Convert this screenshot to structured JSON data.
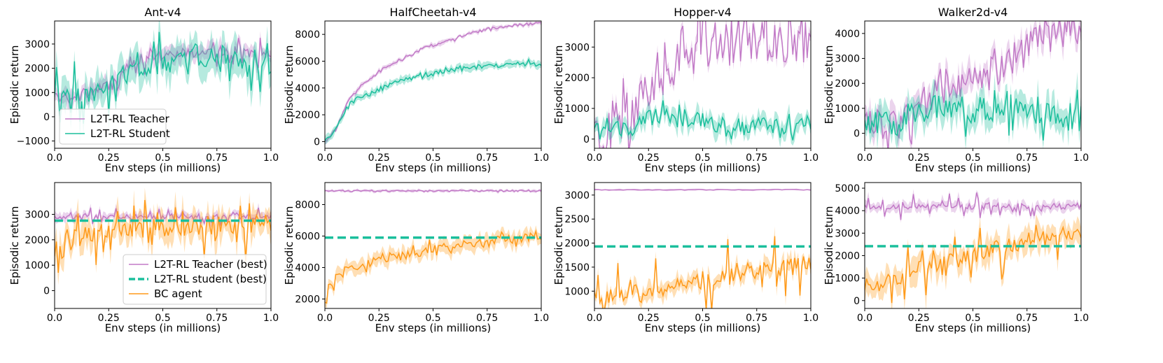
{
  "colors": {
    "teacher": "#c27ac7",
    "student": "#1bbf9c",
    "bc": "#ff9a1a",
    "best_student": "#1bbf9c"
  },
  "chart_data": [
    {
      "type": "line",
      "title": "Ant-v4",
      "row": 0,
      "xlabel": "Env steps (in millions)",
      "ylabel": "Episodic return",
      "xlim": [
        0,
        1
      ],
      "ylim": [
        -1300,
        3950
      ],
      "xticks": [
        0,
        0.25,
        0.5,
        0.75,
        1.0
      ],
      "xtick_labels": [
        "0.0",
        "0.25",
        "0.5",
        "0.75",
        "1.0"
      ],
      "yticks": [
        -1000,
        0,
        1000,
        2000,
        3000
      ],
      "legend": {
        "position": "lower-left",
        "entries": [
          {
            "label": "L2T-RL Teacher",
            "series": "teacher",
            "style": "line"
          },
          {
            "label": "L2T-RL Student",
            "series": "student",
            "style": "line"
          }
        ]
      },
      "series": [
        {
          "key": "teacher",
          "name": "L2T-RL Teacher",
          "color_key": "teacher",
          "x": [
            0,
            0.05,
            0.1,
            0.15,
            0.2,
            0.25,
            0.3,
            0.35,
            0.4,
            0.45,
            0.5,
            0.55,
            0.6,
            0.65,
            0.7,
            0.75,
            0.8,
            0.85,
            0.9,
            0.95,
            1.0
          ],
          "y": [
            900,
            780,
            900,
            1000,
            1150,
            1300,
            1800,
            2200,
            2350,
            2450,
            2500,
            2550,
            2600,
            2650,
            2700,
            2700,
            2750,
            2700,
            2650,
            2600,
            2500
          ],
          "band": 300,
          "wiggle": 200,
          "noise_amp": 500
        },
        {
          "key": "student",
          "name": "L2T-RL Student",
          "color_key": "student",
          "x": [
            0,
            0.05,
            0.1,
            0.15,
            0.2,
            0.25,
            0.3,
            0.35,
            0.4,
            0.45,
            0.5,
            0.55,
            0.6,
            0.65,
            0.7,
            0.75,
            0.8,
            0.85,
            0.9,
            0.95,
            1.0
          ],
          "y": [
            900,
            750,
            850,
            950,
            1050,
            1200,
            1600,
            1900,
            2000,
            2050,
            2150,
            2250,
            2300,
            2400,
            2450,
            2500,
            2450,
            2400,
            2300,
            2200,
            2000
          ],
          "band": 600,
          "wiggle": 400,
          "noise_amp": 1200
        }
      ]
    },
    {
      "type": "line",
      "title": "HalfCheetah-v4",
      "row": 0,
      "xlabel": "Env steps (in millions)",
      "ylabel": "Episodic return",
      "xlim": [
        0,
        1
      ],
      "ylim": [
        -500,
        9000
      ],
      "xticks": [
        0,
        0.25,
        0.5,
        0.75,
        1.0
      ],
      "xtick_labels": [
        "0.0",
        "0.25",
        "0.5",
        "0.75",
        "1.0"
      ],
      "yticks": [
        0,
        2000,
        4000,
        6000,
        8000
      ],
      "series": [
        {
          "key": "teacher",
          "name": "L2T-RL Teacher",
          "color_key": "teacher",
          "x": [
            0,
            0.05,
            0.1,
            0.15,
            0.2,
            0.25,
            0.3,
            0.35,
            0.4,
            0.45,
            0.5,
            0.55,
            0.6,
            0.65,
            0.7,
            0.75,
            0.8,
            0.85,
            0.9,
            0.95,
            1.0
          ],
          "y": [
            0,
            900,
            2800,
            3900,
            4600,
            5200,
            5700,
            6100,
            6500,
            6900,
            7200,
            7500,
            7700,
            7950,
            8150,
            8350,
            8500,
            8600,
            8700,
            8750,
            8850
          ],
          "band": 150,
          "wiggle": 120,
          "noise_amp": 100
        },
        {
          "key": "student",
          "name": "L2T-RL Student",
          "color_key": "student",
          "x": [
            0,
            0.05,
            0.1,
            0.15,
            0.2,
            0.25,
            0.3,
            0.35,
            0.4,
            0.45,
            0.5,
            0.55,
            0.6,
            0.65,
            0.7,
            0.75,
            0.8,
            0.85,
            0.9,
            0.95,
            1.0
          ],
          "y": [
            0,
            900,
            2600,
            3200,
            3500,
            3900,
            4200,
            4500,
            4750,
            4950,
            5100,
            5250,
            5350,
            5450,
            5550,
            5650,
            5700,
            5750,
            5780,
            5800,
            5800
          ],
          "band": 250,
          "wiggle": 180,
          "noise_amp": 200
        }
      ]
    },
    {
      "type": "line",
      "title": "Hopper-v4",
      "row": 0,
      "xlabel": "Env steps (in millions)",
      "ylabel": "Episodic return",
      "xlim": [
        0,
        1
      ],
      "ylim": [
        -300,
        3850
      ],
      "xticks": [
        0,
        0.25,
        0.5,
        0.75,
        1.0
      ],
      "xtick_labels": [
        "0.0",
        "0.25",
        "0.5",
        "0.75",
        "1.0"
      ],
      "yticks": [
        0,
        1000,
        2000,
        3000
      ],
      "series": [
        {
          "key": "teacher",
          "name": "L2T-RL Teacher",
          "color_key": "teacher",
          "x": [
            0,
            0.05,
            0.1,
            0.15,
            0.2,
            0.25,
            0.3,
            0.35,
            0.4,
            0.45,
            0.5,
            0.55,
            0.6,
            0.65,
            0.7,
            0.75,
            0.8,
            0.85,
            0.9,
            0.95,
            1.0
          ],
          "y": [
            250,
            320,
            450,
            650,
            900,
            1500,
            2100,
            2500,
            2800,
            3000,
            3100,
            3250,
            3350,
            3380,
            3390,
            3390,
            3390,
            3390,
            3390,
            3390,
            3390
          ],
          "band": 200,
          "wiggle": 900,
          "noise_amp": 1400
        },
        {
          "key": "student",
          "name": "L2T-RL Student",
          "color_key": "student",
          "x": [
            0,
            0.05,
            0.1,
            0.15,
            0.2,
            0.25,
            0.3,
            0.35,
            0.4,
            0.45,
            0.5,
            0.55,
            0.6,
            0.65,
            0.7,
            0.75,
            0.8,
            0.85,
            0.9,
            0.95,
            1.0
          ],
          "y": [
            250,
            300,
            350,
            350,
            400,
            700,
            800,
            650,
            700,
            650,
            550,
            450,
            450,
            450,
            400,
            400,
            400,
            420,
            450,
            500,
            550
          ],
          "band": 250,
          "wiggle": 300,
          "noise_amp": 450
        }
      ]
    },
    {
      "type": "line",
      "title": "Walker2d-v4",
      "row": 0,
      "xlabel": "Env steps (in millions)",
      "ylabel": "Episodic return",
      "xlim": [
        0,
        1
      ],
      "ylim": [
        -600,
        4500
      ],
      "xticks": [
        0,
        0.25,
        0.5,
        0.75,
        1.0
      ],
      "xtick_labels": [
        "0.0",
        "0.25",
        "0.5",
        "0.75",
        "1.0"
      ],
      "yticks": [
        0,
        1000,
        2000,
        3000,
        4000
      ],
      "series": [
        {
          "key": "teacher",
          "name": "L2T-RL Teacher",
          "color_key": "teacher",
          "x": [
            0,
            0.05,
            0.1,
            0.15,
            0.2,
            0.25,
            0.3,
            0.35,
            0.4,
            0.45,
            0.5,
            0.55,
            0.6,
            0.65,
            0.7,
            0.75,
            0.8,
            0.85,
            0.9,
            0.95,
            1.0
          ],
          "y": [
            350,
            350,
            380,
            400,
            700,
            1100,
            1500,
            1800,
            2000,
            1900,
            2000,
            2200,
            2500,
            2800,
            3200,
            3500,
            3700,
            3900,
            4000,
            4050,
            4100
          ],
          "band": 400,
          "wiggle": 700,
          "noise_amp": 1100
        },
        {
          "key": "student",
          "name": "L2T-RL Student",
          "color_key": "student",
          "x": [
            0,
            0.05,
            0.1,
            0.15,
            0.2,
            0.25,
            0.3,
            0.35,
            0.4,
            0.45,
            0.5,
            0.55,
            0.6,
            0.65,
            0.7,
            0.75,
            0.8,
            0.85,
            0.9,
            0.95,
            1.0
          ],
          "y": [
            350,
            350,
            350,
            400,
            800,
            900,
            1000,
            1100,
            1000,
            950,
            900,
            950,
            1000,
            900,
            900,
            850,
            800,
            700,
            700,
            650,
            650
          ],
          "band": 500,
          "wiggle": 500,
          "noise_amp": 900
        }
      ]
    },
    {
      "type": "line",
      "title": "",
      "row": 1,
      "xlabel": "Env steps (in millions)",
      "ylabel": "Episodic return",
      "xlim": [
        0,
        1
      ],
      "ylim": [
        -700,
        4250
      ],
      "xticks": [
        0,
        0.25,
        0.5,
        0.75,
        1.0
      ],
      "xtick_labels": [
        "0.0",
        "0.25",
        "0.5",
        "0.75",
        "1.0"
      ],
      "yticks": [
        0,
        1000,
        2000,
        3000
      ],
      "legend": {
        "position": "lower-right",
        "entries": [
          {
            "label": "L2T-RL Teacher (best)",
            "series": "teacher",
            "style": "line"
          },
          {
            "label": "L2T-RL student (best)",
            "series": "best_student",
            "style": "dashed"
          },
          {
            "label": "BC agent",
            "series": "bc",
            "style": "line"
          }
        ]
      },
      "hline": {
        "name": "L2T-RL student (best)",
        "y": 2750,
        "color_key": "best_student"
      },
      "series": [
        {
          "key": "teacher",
          "name": "L2T-RL Teacher (best)",
          "color_key": "teacher",
          "x": [
            0,
            0.25,
            0.5,
            0.75,
            1.0
          ],
          "y": [
            2900,
            2900,
            2900,
            2900,
            2900
          ],
          "band": 150,
          "wiggle": 90,
          "noise_amp": 350
        },
        {
          "key": "bc",
          "name": "BC agent",
          "color_key": "bc",
          "x": [
            0,
            0.05,
            0.1,
            0.15,
            0.2,
            0.25,
            0.3,
            0.35,
            0.4,
            0.45,
            0.5,
            0.55,
            0.6,
            0.65,
            0.7,
            0.75,
            0.8,
            0.85,
            0.9,
            0.95,
            1.0
          ],
          "y": [
            1200,
            1800,
            2000,
            2200,
            2300,
            2350,
            2400,
            2450,
            2450,
            2500,
            2500,
            2550,
            2500,
            2550,
            2600,
            2550,
            2600,
            2600,
            2650,
            2650,
            2700
          ],
          "band": 450,
          "wiggle": 400,
          "noise_amp": 1200
        }
      ]
    },
    {
      "type": "line",
      "title": "",
      "row": 1,
      "xlabel": "Env steps (in millions)",
      "ylabel": "Episodic return",
      "xlim": [
        0,
        1
      ],
      "ylim": [
        1400,
        9400
      ],
      "xticks": [
        0,
        0.25,
        0.5,
        0.75,
        1.0
      ],
      "xtick_labels": [
        "0.0",
        "0.25",
        "0.5",
        "0.75",
        "1.0"
      ],
      "yticks": [
        2000,
        4000,
        6000,
        8000
      ],
      "hline": {
        "name": "L2T-RL student (best)",
        "y": 5900,
        "color_key": "best_student"
      },
      "series": [
        {
          "key": "teacher",
          "name": "L2T-RL Teacher (best)",
          "color_key": "teacher",
          "x": [
            0,
            0.25,
            0.5,
            0.75,
            1.0
          ],
          "y": [
            8870,
            8870,
            8870,
            8870,
            8870
          ],
          "band": 80,
          "wiggle": 50,
          "noise_amp": 40
        },
        {
          "key": "bc",
          "name": "BC agent",
          "color_key": "bc",
          "x": [
            0,
            0.05,
            0.1,
            0.15,
            0.2,
            0.25,
            0.3,
            0.35,
            0.4,
            0.45,
            0.5,
            0.55,
            0.6,
            0.65,
            0.7,
            0.75,
            0.8,
            0.85,
            0.9,
            0.95,
            1.0
          ],
          "y": [
            1700,
            3400,
            3900,
            4100,
            4300,
            4450,
            4550,
            4700,
            4850,
            5000,
            5150,
            5250,
            5400,
            5500,
            5600,
            5700,
            5800,
            5850,
            5900,
            5950,
            6000
          ],
          "band": 400,
          "wiggle": 250,
          "noise_amp": 600
        }
      ]
    },
    {
      "type": "line",
      "title": "",
      "row": 1,
      "xlabel": "Env steps (in millions)",
      "ylabel": "Episodic return",
      "xlim": [
        0,
        1
      ],
      "ylim": [
        640,
        3260
      ],
      "xticks": [
        0,
        0.25,
        0.5,
        0.75,
        1.0
      ],
      "xtick_labels": [
        "0.0",
        "0.25",
        "0.5",
        "0.75",
        "1.0"
      ],
      "yticks": [
        1000,
        1500,
        2000,
        2500,
        3000
      ],
      "hline": {
        "name": "L2T-RL student (best)",
        "y": 1930,
        "color_key": "best_student"
      },
      "series": [
        {
          "key": "teacher",
          "name": "L2T-RL Teacher (best)",
          "color_key": "teacher",
          "x": [
            0,
            0.25,
            0.5,
            0.75,
            1.0
          ],
          "y": [
            3110,
            3110,
            3110,
            3110,
            3110
          ],
          "band": 15,
          "wiggle": 8,
          "noise_amp": 0
        },
        {
          "key": "bc",
          "name": "BC agent",
          "color_key": "bc",
          "x": [
            0,
            0.05,
            0.1,
            0.15,
            0.2,
            0.25,
            0.3,
            0.35,
            0.4,
            0.45,
            0.5,
            0.55,
            0.6,
            0.65,
            0.7,
            0.75,
            0.8,
            0.85,
            0.9,
            0.95,
            1.0
          ],
          "y": [
            900,
            880,
            900,
            920,
            950,
            1000,
            1050,
            1080,
            1100,
            1150,
            1200,
            1250,
            1300,
            1350,
            1400,
            1450,
            1450,
            1500,
            1500,
            1550,
            1550
          ],
          "band": 150,
          "wiggle": 180,
          "noise_amp": 700
        }
      ]
    },
    {
      "type": "line",
      "title": "",
      "row": 1,
      "xlabel": "Env steps (in millions)",
      "ylabel": "Episodic return",
      "xlim": [
        0,
        1
      ],
      "ylim": [
        -350,
        5250
      ],
      "xticks": [
        0,
        0.25,
        0.5,
        0.75,
        1.0
      ],
      "xtick_labels": [
        "0.0",
        "0.25",
        "0.5",
        "0.75",
        "1.0"
      ],
      "yticks": [
        0,
        1000,
        2000,
        3000,
        4000,
        5000
      ],
      "hline": {
        "name": "L2T-RL student (best)",
        "y": 2420,
        "color_key": "best_student"
      },
      "series": [
        {
          "key": "teacher",
          "name": "L2T-RL Teacher (best)",
          "color_key": "teacher",
          "x": [
            0,
            0.25,
            0.5,
            0.75,
            1.0
          ],
          "y": [
            4200,
            4200,
            4200,
            4200,
            4200
          ],
          "band": 200,
          "wiggle": 130,
          "noise_amp": 500
        },
        {
          "key": "bc",
          "name": "BC agent",
          "color_key": "bc",
          "x": [
            0,
            0.05,
            0.1,
            0.15,
            0.2,
            0.25,
            0.3,
            0.35,
            0.4,
            0.45,
            0.5,
            0.55,
            0.6,
            0.65,
            0.7,
            0.75,
            0.8,
            0.85,
            0.9,
            0.95,
            1.0
          ],
          "y": [
            300,
            500,
            800,
            1000,
            1200,
            1400,
            1500,
            1700,
            1800,
            1900,
            2000,
            2100,
            2300,
            2400,
            2500,
            2600,
            2700,
            2800,
            2900,
            3000,
            3100
          ],
          "band": 500,
          "wiggle": 350,
          "noise_amp": 1100
        }
      ]
    }
  ]
}
